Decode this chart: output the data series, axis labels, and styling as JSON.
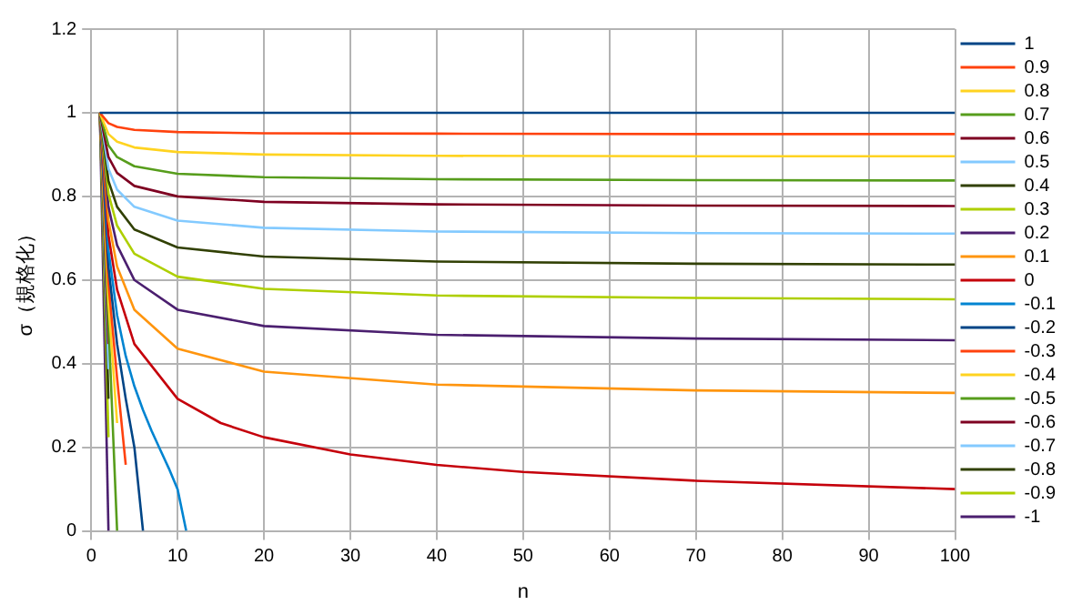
{
  "chart_data": {
    "type": "line",
    "xlabel": "n",
    "ylabel": "σ（規格化）",
    "xlim": [
      0,
      100
    ],
    "xticks": [
      0,
      10,
      20,
      30,
      40,
      50,
      60,
      70,
      80,
      90,
      100
    ],
    "ylim": [
      0,
      1.2
    ],
    "yticks": [
      0,
      0.2,
      0.4,
      0.6,
      0.8,
      1,
      1.2
    ],
    "grid": true,
    "legend": "right",
    "marker": "none",
    "line_style": "solid",
    "series": [
      {
        "name": "1",
        "color": "#004586",
        "x": [
          1,
          100
        ],
        "values": [
          1,
          1
        ]
      },
      {
        "name": "0.9",
        "color": "#ff420e",
        "x": [
          1,
          2,
          3,
          5,
          10,
          20,
          40,
          70,
          100
        ],
        "values": [
          1,
          0.975,
          0.966,
          0.959,
          0.954,
          0.951,
          0.95,
          0.949,
          0.949
        ]
      },
      {
        "name": "0.8",
        "color": "#ffd320",
        "x": [
          1,
          2,
          3,
          5,
          10,
          20,
          40,
          70,
          100
        ],
        "values": [
          1,
          0.949,
          0.931,
          0.917,
          0.906,
          0.9,
          0.897,
          0.896,
          0.896
        ]
      },
      {
        "name": "0.7",
        "color": "#579d1c",
        "x": [
          1,
          2,
          3,
          5,
          10,
          20,
          40,
          70,
          100
        ],
        "values": [
          1,
          0.922,
          0.894,
          0.872,
          0.854,
          0.846,
          0.841,
          0.839,
          0.838
        ]
      },
      {
        "name": "0.6",
        "color": "#7e0021",
        "x": [
          1,
          2,
          3,
          5,
          10,
          20,
          40,
          70,
          100
        ],
        "values": [
          1,
          0.894,
          0.856,
          0.825,
          0.8,
          0.787,
          0.781,
          0.778,
          0.777
        ]
      },
      {
        "name": "0.5",
        "color": "#83caff",
        "x": [
          1,
          2,
          3,
          5,
          10,
          20,
          40,
          70,
          100
        ],
        "values": [
          1,
          0.866,
          0.816,
          0.775,
          0.742,
          0.725,
          0.716,
          0.712,
          0.711
        ]
      },
      {
        "name": "0.4",
        "color": "#314004",
        "x": [
          1,
          2,
          3,
          5,
          10,
          20,
          40,
          70,
          100
        ],
        "values": [
          1,
          0.837,
          0.775,
          0.721,
          0.678,
          0.656,
          0.644,
          0.639,
          0.637
        ]
      },
      {
        "name": "0.3",
        "color": "#aecf00",
        "x": [
          1,
          2,
          3,
          5,
          10,
          20,
          40,
          70,
          100
        ],
        "values": [
          1,
          0.806,
          0.73,
          0.663,
          0.608,
          0.579,
          0.563,
          0.557,
          0.554
        ]
      },
      {
        "name": "0.2",
        "color": "#4b1f6f",
        "x": [
          1,
          2,
          3,
          5,
          10,
          20,
          40,
          70,
          100
        ],
        "values": [
          1,
          0.775,
          0.683,
          0.6,
          0.529,
          0.49,
          0.469,
          0.46,
          0.456
        ]
      },
      {
        "name": "0.1",
        "color": "#ff950e",
        "x": [
          1,
          2,
          3,
          5,
          10,
          20,
          40,
          70,
          100
        ],
        "values": [
          1,
          0.742,
          0.632,
          0.529,
          0.436,
          0.381,
          0.35,
          0.336,
          0.33
        ]
      },
      {
        "name": "0",
        "color": "#c5000b",
        "x": [
          1,
          2,
          3,
          5,
          10,
          15,
          20,
          30,
          40,
          50,
          70,
          100
        ],
        "values": [
          1,
          0.707,
          0.577,
          0.447,
          0.316,
          0.258,
          0.224,
          0.183,
          0.158,
          0.141,
          0.12,
          0.1
        ]
      },
      {
        "name": "-0.1",
        "color": "#0084d1",
        "x": [
          1,
          2,
          3,
          4,
          5,
          6,
          7,
          8,
          9,
          10,
          11
        ],
        "values": [
          1,
          0.671,
          0.516,
          0.418,
          0.346,
          0.289,
          0.239,
          0.194,
          0.149,
          0.1,
          0
        ]
      },
      {
        "name": "-0.2",
        "color": "#004586",
        "x": [
          1,
          2,
          3,
          4,
          5,
          6
        ],
        "values": [
          1,
          0.632,
          0.447,
          0.316,
          0.2,
          0
        ]
      },
      {
        "name": "-0.3",
        "color": "#ff420e",
        "x": [
          1,
          2,
          3,
          4
        ],
        "values": [
          1,
          0.592,
          0.365,
          0.158
        ]
      },
      {
        "name": "-0.4",
        "color": "#ffd320",
        "x": [
          1,
          2,
          3
        ],
        "values": [
          1,
          0.548,
          0.258
        ]
      },
      {
        "name": "-0.5",
        "color": "#579d1c",
        "x": [
          1,
          2,
          3
        ],
        "values": [
          1,
          0.5,
          0
        ]
      },
      {
        "name": "-0.6",
        "color": "#7e0021",
        "x": [
          1,
          2
        ],
        "values": [
          1,
          0.447
        ]
      },
      {
        "name": "-0.7",
        "color": "#83caff",
        "x": [
          1,
          2
        ],
        "values": [
          1,
          0.387
        ]
      },
      {
        "name": "-0.8",
        "color": "#314004",
        "x": [
          1,
          2
        ],
        "values": [
          1,
          0.316
        ]
      },
      {
        "name": "-0.9",
        "color": "#aecf00",
        "x": [
          1,
          2
        ],
        "values": [
          1,
          0.224
        ]
      },
      {
        "name": "-1",
        "color": "#4b1f6f",
        "x": [
          1,
          2
        ],
        "values": [
          1,
          0
        ]
      }
    ]
  }
}
